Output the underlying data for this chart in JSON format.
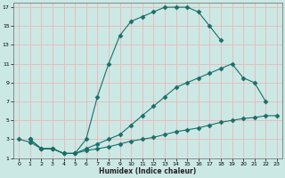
{
  "xlabel": "Humidex (Indice chaleur)",
  "bg_color": "#cce8e4",
  "line_color": "#1a6e6a",
  "grid_color": "#e8b8b8",
  "xlim": [
    -0.5,
    23.5
  ],
  "ylim": [
    1,
    17.5
  ],
  "xticks": [
    0,
    1,
    2,
    3,
    4,
    5,
    6,
    7,
    8,
    9,
    10,
    11,
    12,
    13,
    14,
    15,
    16,
    17,
    18,
    19,
    20,
    21,
    22,
    23
  ],
  "yticks": [
    1,
    3,
    5,
    7,
    9,
    11,
    13,
    15,
    17
  ],
  "line1_x": [
    0,
    1,
    2,
    3,
    4,
    5,
    6,
    7,
    8,
    9,
    10,
    11,
    12,
    13,
    14,
    15,
    16,
    17,
    18
  ],
  "line1_y": [
    3.0,
    2.7,
    2.0,
    2.0,
    1.5,
    1.5,
    3.0,
    7.5,
    11.0,
    14.0,
    15.5,
    16.0,
    16.5,
    17.0,
    17.0,
    17.0,
    16.5,
    15.0,
    13.5
  ],
  "line2_x": [
    1,
    2,
    3,
    4,
    5,
    6,
    7,
    8,
    9,
    10,
    11,
    12,
    13,
    14,
    15,
    16,
    17,
    18,
    19,
    20,
    21,
    22
  ],
  "line2_y": [
    3.0,
    2.0,
    2.0,
    1.5,
    1.5,
    2.0,
    2.5,
    3.0,
    3.5,
    4.5,
    5.5,
    6.5,
    7.5,
    8.5,
    9.0,
    9.5,
    10.0,
    10.5,
    11.0,
    9.5,
    9.0,
    7.0
  ],
  "line3_x": [
    1,
    2,
    3,
    4,
    5,
    6,
    7,
    8,
    9,
    10,
    11,
    12,
    13,
    14,
    15,
    16,
    17,
    18,
    19,
    20,
    21,
    22,
    23
  ],
  "line3_y": [
    3.0,
    2.0,
    2.0,
    1.5,
    1.5,
    1.8,
    2.0,
    2.2,
    2.5,
    2.8,
    3.0,
    3.2,
    3.5,
    3.8,
    4.0,
    4.2,
    4.5,
    4.8,
    5.0,
    5.2,
    5.3,
    5.5,
    5.5
  ]
}
